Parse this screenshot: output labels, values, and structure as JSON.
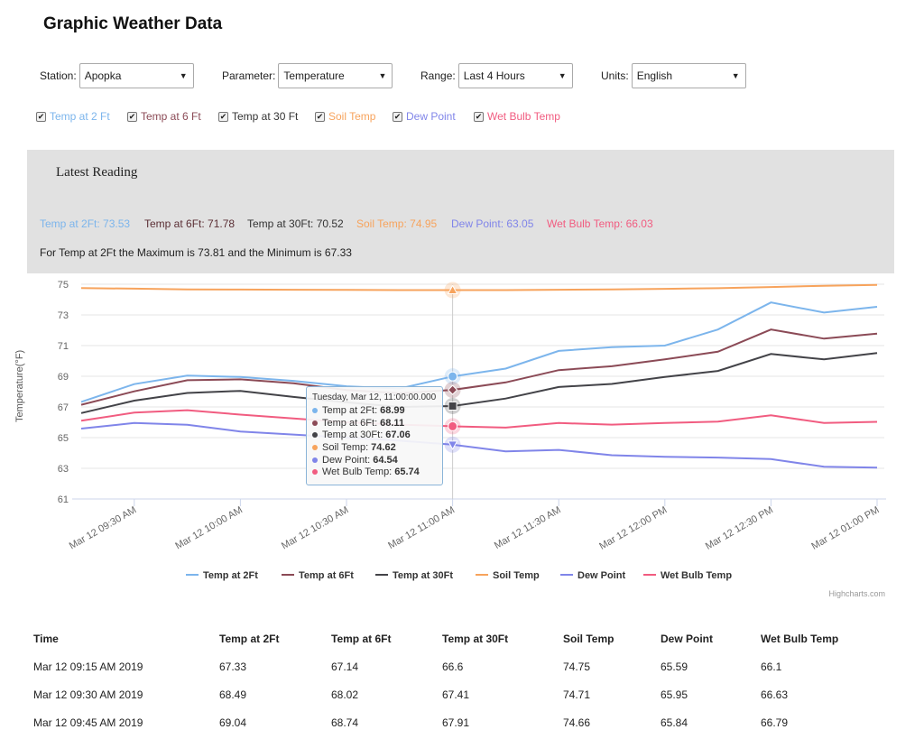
{
  "page_title": "Graphic Weather Data",
  "controls": {
    "station": {
      "label": "Station:",
      "value": "Apopka"
    },
    "parameter": {
      "label": "Parameter:",
      "value": "Temperature"
    },
    "range": {
      "label": "Range:",
      "value": "Last 4 Hours"
    },
    "units": {
      "label": "Units:",
      "value": "English"
    }
  },
  "series_toggles": [
    {
      "label": "Temp at 2 Ft",
      "checked": true,
      "color": "#7cb5ec"
    },
    {
      "label": "Temp at 6 Ft",
      "checked": true,
      "color": "#8b4a56"
    },
    {
      "label": "Temp at 30 Ft",
      "checked": true,
      "color": "#434348"
    },
    {
      "label": "Soil Temp",
      "checked": true,
      "color": "#f7a35c"
    },
    {
      "label": "Dew Point",
      "checked": true,
      "color": "#8085e9"
    },
    {
      "label": "Wet Bulb Temp",
      "checked": true,
      "color": "#f15c80"
    }
  ],
  "latest": {
    "title": "Latest Reading",
    "readings": [
      {
        "text": "Temp at 2Ft: 73.53",
        "color": "#7cb5ec"
      },
      {
        "text": "Temp at 6Ft: 71.78",
        "color": "#5b2f35"
      },
      {
        "text": "Temp at 30Ft: 70.52",
        "color": "#333333"
      },
      {
        "text": "Soil Temp: 74.95",
        "color": "#f7a35c"
      },
      {
        "text": "Dew Point: 63.05",
        "color": "#8085e9"
      },
      {
        "text": "Wet Bulb Temp: 66.03",
        "color": "#f15c80"
      }
    ],
    "minmax": "For Temp at 2Ft the Maximum is 73.81 and the Minimum is 67.33"
  },
  "chart_data": {
    "type": "line",
    "ylabel": "Temperature(°F)",
    "ylim": [
      61,
      75
    ],
    "yticks": [
      61,
      63,
      65,
      67,
      69,
      71,
      73,
      75
    ],
    "x": [
      "09:15",
      "09:30",
      "09:45",
      "10:00",
      "10:15",
      "10:30",
      "10:45",
      "11:00",
      "11:15",
      "11:30",
      "11:45",
      "12:00",
      "12:15",
      "12:30",
      "12:45",
      "13:00"
    ],
    "xtick_labels": [
      "Mar 12 09:30 AM",
      "Mar 12 10:00 AM",
      "Mar 12 10:30 AM",
      "Mar 12 11:00 AM",
      "Mar 12 11:30 AM",
      "Mar 12 12:00 PM",
      "Mar 12 12:30 PM",
      "Mar 12 01:00 PM"
    ],
    "grid": true,
    "legend_position": "bottom",
    "series": [
      {
        "name": "Temp at 2Ft",
        "color": "#7cb5ec",
        "values": [
          67.33,
          68.49,
          69.04,
          68.95,
          68.7,
          68.35,
          68.2,
          68.99,
          69.5,
          70.65,
          70.9,
          71.0,
          72.05,
          73.81,
          73.15,
          73.53
        ]
      },
      {
        "name": "Temp at 6Ft",
        "color": "#8b4a56",
        "values": [
          67.14,
          68.02,
          68.74,
          68.8,
          68.55,
          68.1,
          67.9,
          68.11,
          68.6,
          69.4,
          69.65,
          70.1,
          70.6,
          72.05,
          71.45,
          71.78
        ]
      },
      {
        "name": "Temp at 30Ft",
        "color": "#434348",
        "values": [
          66.6,
          67.41,
          67.91,
          68.05,
          67.65,
          67.3,
          67.0,
          67.06,
          67.55,
          68.3,
          68.5,
          68.95,
          69.35,
          70.45,
          70.1,
          70.52
        ]
      },
      {
        "name": "Soil Temp",
        "color": "#f7a35c",
        "values": [
          74.75,
          74.71,
          74.66,
          74.65,
          74.64,
          74.63,
          74.62,
          74.62,
          74.62,
          74.64,
          74.66,
          74.7,
          74.74,
          74.82,
          74.9,
          74.95
        ]
      },
      {
        "name": "Dew Point",
        "color": "#8085e9",
        "values": [
          65.59,
          65.95,
          65.84,
          65.4,
          65.2,
          65.0,
          64.8,
          64.54,
          64.1,
          64.2,
          63.85,
          63.75,
          63.7,
          63.6,
          63.1,
          63.05
        ]
      },
      {
        "name": "Wet Bulb Temp",
        "color": "#f15c80",
        "values": [
          66.1,
          66.63,
          66.79,
          66.5,
          66.25,
          66.0,
          65.85,
          65.74,
          65.65,
          65.95,
          65.85,
          65.95,
          66.05,
          66.45,
          65.95,
          66.03
        ]
      }
    ],
    "tooltip": {
      "header": "Tuesday, Mar 12, 11:00:00.000",
      "rows": [
        {
          "label": "Temp at 2Ft:",
          "value": "68.99",
          "color": "#7cb5ec"
        },
        {
          "label": "Temp at 6Ft:",
          "value": "68.11",
          "color": "#8b4a56"
        },
        {
          "label": "Temp at 30Ft:",
          "value": "67.06",
          "color": "#434348"
        },
        {
          "label": "Soil Temp:",
          "value": "74.62",
          "color": "#f7a35c"
        },
        {
          "label": "Dew Point:",
          "value": "64.54",
          "color": "#8085e9"
        },
        {
          "label": "Wet Bulb Temp:",
          "value": "65.74",
          "color": "#f15c80"
        }
      ]
    },
    "credits": "Highcharts.com"
  },
  "table": {
    "headers": [
      "Time",
      "Temp at 2Ft",
      "Temp at 6Ft",
      "Temp at 30Ft",
      "Soil Temp",
      "Dew Point",
      "Wet Bulb Temp"
    ],
    "rows": [
      [
        "Mar 12 09:15 AM 2019",
        "67.33",
        "67.14",
        "66.6",
        "74.75",
        "65.59",
        "66.1"
      ],
      [
        "Mar 12 09:30 AM 2019",
        "68.49",
        "68.02",
        "67.41",
        "74.71",
        "65.95",
        "66.63"
      ],
      [
        "Mar 12 09:45 AM 2019",
        "69.04",
        "68.74",
        "67.91",
        "74.66",
        "65.84",
        "66.79"
      ]
    ]
  }
}
